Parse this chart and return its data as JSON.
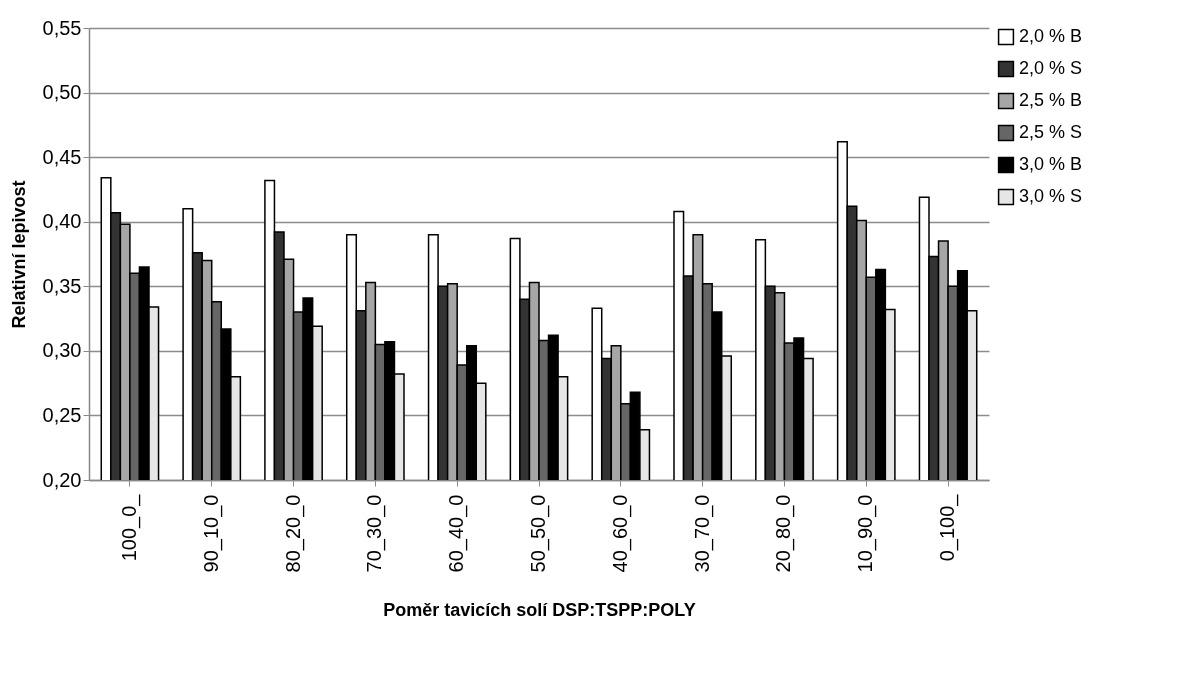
{
  "chart_data": {
    "type": "bar",
    "xlabel": "Poměr tavicích solí DSP:TSPP:POLY",
    "ylabel": "Relativní lepivost",
    "categories": [
      "100_0_",
      "90_10_0",
      "80_20_0",
      "70_30_0",
      "60_40_0",
      "50_50_0",
      "40_60_0",
      "30_70_0",
      "20_80_0",
      "10_90_0",
      "0_100_"
    ],
    "series": [
      {
        "name": "2,0 % B",
        "color": "#ffffff",
        "values": [
          0.434,
          0.41,
          0.432,
          0.39,
          0.39,
          0.387,
          0.333,
          0.408,
          0.386,
          0.462,
          0.419
        ]
      },
      {
        "name": "2,0 % S",
        "color": "#333333",
        "values": [
          0.407,
          0.376,
          0.392,
          0.331,
          0.35,
          0.34,
          0.294,
          0.358,
          0.35,
          0.412,
          0.373
        ]
      },
      {
        "name": "2,5 % B",
        "color": "#a6a6a6",
        "values": [
          0.398,
          0.37,
          0.371,
          0.353,
          0.352,
          0.353,
          0.304,
          0.39,
          0.345,
          0.401,
          0.385
        ]
      },
      {
        "name": "2,5 % S",
        "color": "#666666",
        "values": [
          0.36,
          0.338,
          0.33,
          0.305,
          0.289,
          0.308,
          0.259,
          0.352,
          0.306,
          0.357,
          0.35
        ]
      },
      {
        "name": "3,0 % B",
        "color": "#000000",
        "values": [
          0.365,
          0.317,
          0.341,
          0.307,
          0.304,
          0.312,
          0.268,
          0.33,
          0.31,
          0.363,
          0.362
        ]
      },
      {
        "name": "3,0 % S",
        "color": "#e6e6e6",
        "values": [
          0.334,
          0.28,
          0.319,
          0.282,
          0.275,
          0.28,
          0.239,
          0.296,
          0.294,
          0.332,
          0.331
        ]
      }
    ],
    "ylim": [
      0.2,
      0.55
    ],
    "yticks": [
      {
        "value": 0.2,
        "label": "0,20"
      },
      {
        "value": 0.25,
        "label": "0,25"
      },
      {
        "value": 0.3,
        "label": "0,30"
      },
      {
        "value": 0.35,
        "label": "0,35"
      },
      {
        "value": 0.4,
        "label": "0,40"
      },
      {
        "value": 0.45,
        "label": "0,45"
      },
      {
        "value": 0.5,
        "label": "0,50"
      },
      {
        "value": 0.55,
        "label": "0,55"
      }
    ],
    "grid": "y",
    "legend": "top right"
  }
}
